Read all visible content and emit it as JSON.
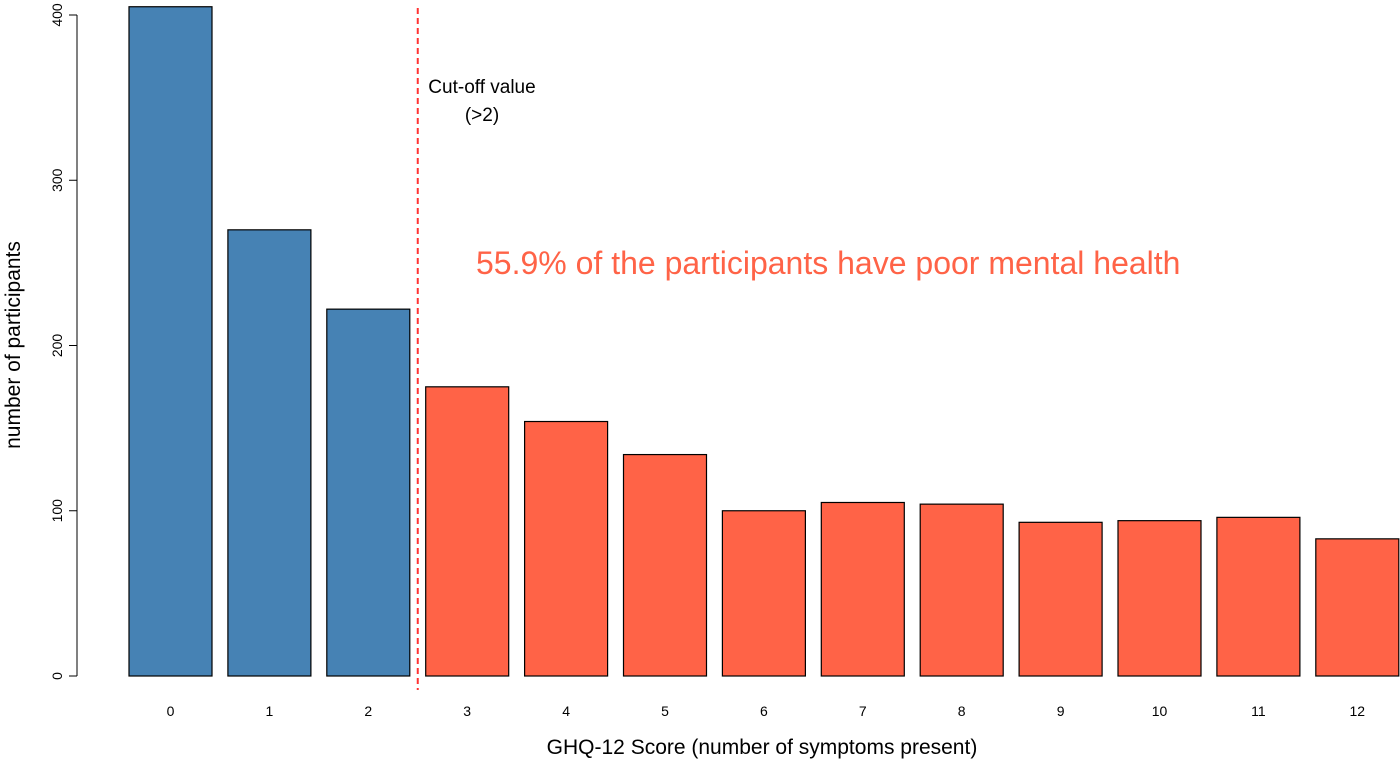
{
  "chart_data": {
    "type": "bar",
    "categories": [
      "0",
      "1",
      "2",
      "3",
      "4",
      "5",
      "6",
      "7",
      "8",
      "9",
      "10",
      "11",
      "12"
    ],
    "values": [
      405,
      270,
      222,
      175,
      154,
      134,
      100,
      105,
      104,
      93,
      94,
      96,
      83
    ],
    "xlabel": "GHQ-12 Score (number of symptoms present)",
    "ylabel": "number of participants",
    "ylim": [
      0,
      400
    ],
    "yticks": [
      0,
      100,
      200,
      300,
      400
    ],
    "cutoff": {
      "after_category": "2",
      "line_1": "Cut-off value",
      "line_2": "(>2)",
      "color": "#ff3333",
      "style": "dashed"
    },
    "headline": "55.9% of the participants have poor mental health",
    "colors": {
      "below_cutoff": "#4682b4",
      "above_cutoff": "#ff6347",
      "headline": "#ff6347",
      "bar_border": "#000000"
    },
    "grid": false,
    "legend": "none"
  }
}
